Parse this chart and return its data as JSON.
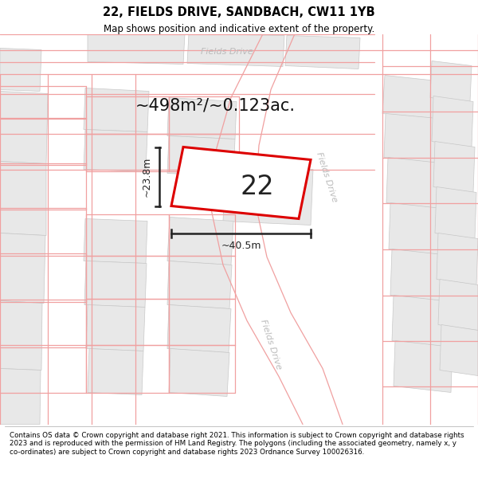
{
  "title": "22, FIELDS DRIVE, SANDBACH, CW11 1YB",
  "subtitle": "Map shows position and indicative extent of the property.",
  "footer": "Contains OS data © Crown copyright and database right 2021. This information is subject to Crown copyright and database rights 2023 and is reproduced with the permission of HM Land Registry. The polygons (including the associated geometry, namely x, y co-ordinates) are subject to Crown copyright and database rights 2023 Ordnance Survey 100026316.",
  "area_text": "~498m²/~0.123ac.",
  "label": "22",
  "width_label": "~40.5m",
  "height_label": "~23.8m",
  "map_bg": "#ffffff",
  "building_fill": "#e8e8e8",
  "building_edge": "#c8c8c8",
  "road_fill": "#ffffff",
  "plot_edge_light": "#f0a0a0",
  "plot_edge_main": "#dd0000",
  "road_label_color": "#bbbbbb",
  "dim_color": "#222222"
}
